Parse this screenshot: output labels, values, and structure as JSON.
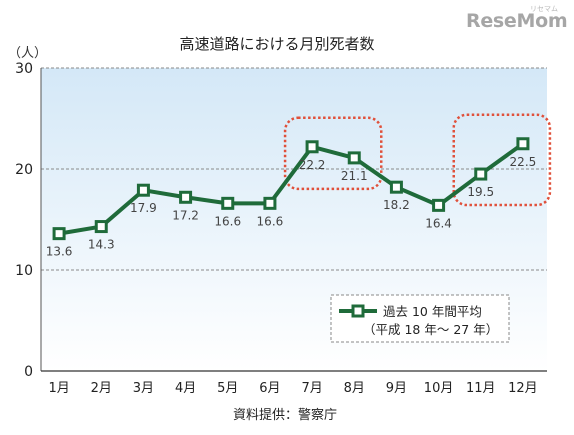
{
  "logo": {
    "text": "ReseMom",
    "sub": "リセマム"
  },
  "chart_data": {
    "type": "line",
    "title": "高速道路における月別死者数",
    "unit_label": "（人）",
    "source": "資料提供：警察庁",
    "categories": [
      "1月",
      "2月",
      "3月",
      "4月",
      "5月",
      "6月",
      "7月",
      "8月",
      "9月",
      "10月",
      "11月",
      "12月"
    ],
    "series": [
      {
        "name": "過去 10 年間平均",
        "values": [
          13.6,
          14.3,
          17.9,
          17.2,
          16.6,
          16.6,
          22.2,
          21.1,
          18.2,
          16.4,
          19.5,
          22.5
        ],
        "color": "#1f6b3a"
      }
    ],
    "legend_note": "（平成 18 年～ 27 年）",
    "legend_position": "bottom-right",
    "ylim": [
      0,
      30
    ],
    "yticks": [
      0,
      10,
      20,
      30
    ],
    "grid": true,
    "highlights": [
      {
        "categories": [
          "7月",
          "8月"
        ],
        "color": "#e0503a"
      },
      {
        "categories": [
          "11月",
          "12月"
        ],
        "color": "#e0503a"
      }
    ],
    "background_gradient": [
      "#d4e8f7",
      "#ffffff"
    ]
  }
}
